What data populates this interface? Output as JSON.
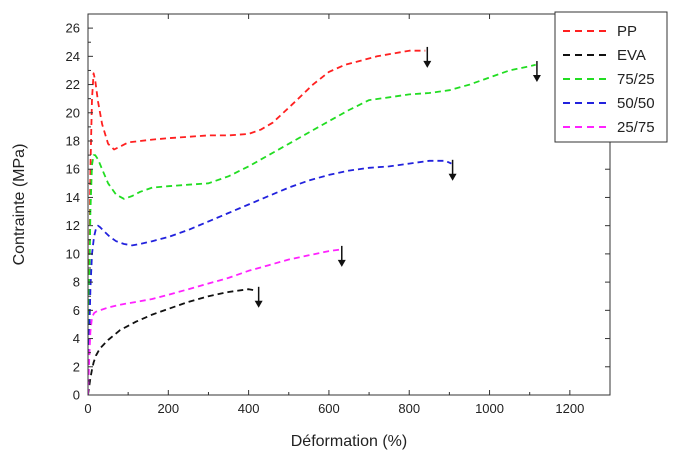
{
  "chart_data": {
    "type": "line",
    "title": "",
    "xlabel": "Déformation (%)",
    "ylabel": "Contrainte (MPa)",
    "xlim": [
      0,
      1300
    ],
    "ylim": [
      0,
      27
    ],
    "x_ticks": [
      0,
      200,
      400,
      600,
      800,
      1000,
      1200
    ],
    "y_ticks": [
      0,
      2,
      4,
      6,
      8,
      10,
      12,
      14,
      16,
      18,
      20,
      22,
      24,
      26
    ],
    "grid": false,
    "legend_position": "top-right",
    "line_style": "dashed",
    "series": [
      {
        "name": "PP",
        "color": "#ff2020",
        "x": [
          0,
          3,
          6,
          10,
          14,
          18,
          25,
          35,
          50,
          65,
          80,
          100,
          130,
          160,
          200,
          250,
          300,
          350,
          400,
          430,
          460,
          490,
          520,
          560,
          600,
          640,
          680,
          720,
          760,
          800,
          840
        ],
        "y": [
          0,
          8,
          16,
          21,
          22.8,
          22.3,
          20.8,
          19.2,
          17.8,
          17.4,
          17.6,
          17.9,
          18.0,
          18.1,
          18.2,
          18.3,
          18.4,
          18.4,
          18.5,
          18.8,
          19.3,
          20.1,
          20.9,
          22.0,
          22.9,
          23.4,
          23.7,
          24.0,
          24.2,
          24.4,
          24.4
        ]
      },
      {
        "name": "EVA",
        "color": "#111111",
        "x": [
          0,
          3,
          6,
          10,
          14,
          20,
          30,
          50,
          80,
          120,
          160,
          200,
          250,
          300,
          350,
          400,
          420
        ],
        "y": [
          0,
          0.6,
          1.2,
          1.8,
          2.3,
          2.8,
          3.3,
          3.9,
          4.6,
          5.2,
          5.7,
          6.1,
          6.6,
          7.0,
          7.3,
          7.5,
          7.4
        ]
      },
      {
        "name": "75/25",
        "color": "#22dd22",
        "x": [
          0,
          3,
          6,
          10,
          14,
          18,
          25,
          35,
          50,
          70,
          90,
          110,
          130,
          160,
          200,
          250,
          300,
          350,
          400,
          450,
          500,
          550,
          600,
          650,
          700,
          750,
          800,
          850,
          900,
          950,
          1000,
          1050,
          1100,
          1115
        ],
        "y": [
          0,
          7,
          13,
          16.3,
          17.0,
          17.0,
          16.7,
          16.0,
          15.0,
          14.2,
          13.9,
          14.1,
          14.4,
          14.7,
          14.8,
          14.9,
          15.0,
          15.5,
          16.2,
          17.0,
          17.8,
          18.6,
          19.4,
          20.2,
          20.9,
          21.1,
          21.3,
          21.4,
          21.6,
          22.0,
          22.5,
          23.0,
          23.3,
          23.4
        ]
      },
      {
        "name": "50/50",
        "color": "#2222dd",
        "x": [
          0,
          3,
          6,
          10,
          15,
          20,
          25,
          30,
          40,
          55,
          70,
          90,
          110,
          130,
          160,
          200,
          250,
          300,
          350,
          400,
          450,
          500,
          550,
          600,
          650,
          700,
          750,
          800,
          850,
          890,
          905
        ],
        "y": [
          0,
          4,
          7.5,
          10,
          11.2,
          11.8,
          12.0,
          11.9,
          11.6,
          11.2,
          10.9,
          10.7,
          10.6,
          10.7,
          10.9,
          11.2,
          11.7,
          12.3,
          12.9,
          13.5,
          14.1,
          14.7,
          15.2,
          15.6,
          15.9,
          16.1,
          16.2,
          16.4,
          16.6,
          16.6,
          16.4
        ]
      },
      {
        "name": "25/75",
        "color": "#ff22ff",
        "x": [
          0,
          3,
          6,
          10,
          15,
          20,
          30,
          50,
          80,
          120,
          160,
          200,
          250,
          300,
          350,
          400,
          450,
          500,
          550,
          600,
          625
        ],
        "y": [
          0,
          2.5,
          4.5,
          5.5,
          5.8,
          5.9,
          6.0,
          6.2,
          6.4,
          6.6,
          6.8,
          7.1,
          7.5,
          7.9,
          8.3,
          8.8,
          9.2,
          9.6,
          9.9,
          10.2,
          10.3
        ]
      }
    ],
    "break_markers": [
      {
        "series": "PP",
        "x": 845,
        "y": 24.1
      },
      {
        "series": "EVA",
        "x": 425,
        "y": 7.1
      },
      {
        "series": "75/25",
        "x": 1118,
        "y": 23.1
      },
      {
        "series": "50/50",
        "x": 908,
        "y": 16.1
      },
      {
        "series": "25/75",
        "x": 632,
        "y": 10.0
      }
    ]
  }
}
